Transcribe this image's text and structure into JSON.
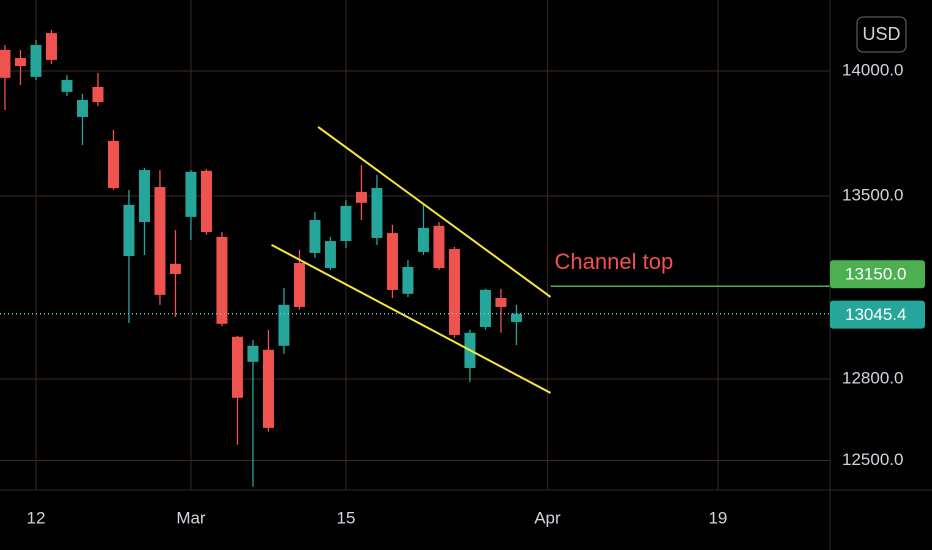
{
  "chart_data": {
    "type": "candlestick",
    "currency": "USD",
    "log_scale": true,
    "grid": true,
    "up_color": "#26a69a",
    "down_color": "#ef5350",
    "grid_color": "#3b2a1c",
    "open": [
      14086,
      14053,
      13976,
      14155,
      13915,
      13814,
      13935,
      13718,
      13266,
      13398,
      13535,
      13236,
      13418,
      13599,
      13340,
      12958,
      12864,
      12909,
      12924,
      13239,
      13278,
      13220,
      13324,
      13516,
      13336,
      13355,
      13121,
      13282,
      13383,
      13293,
      12841,
      12995,
      13105,
      13014
    ],
    "high": [
      14106,
      14086,
      14127,
      14168,
      13983,
      13907,
      13992,
      13762,
      13524,
      13610,
      13602,
      13367,
      13602,
      13606,
      13359,
      12961,
      12946,
      12984,
      13143,
      13290,
      13437,
      13340,
      13484,
      13622,
      13583,
      13387,
      13251,
      13465,
      13398,
      13301,
      12984,
      13140,
      13140,
      13079
    ],
    "low": [
      13842,
      13943,
      13963,
      14028,
      13898,
      13702,
      13858,
      13524,
      13010,
      13270,
      13079,
      13033,
      13328,
      13348,
      12999,
      12557,
      12405,
      12605,
      12894,
      13060,
      13259,
      13212,
      13297,
      13406,
      13309,
      13105,
      13109,
      13270,
      13212,
      12954,
      12789,
      12984,
      12973,
      12927
    ],
    "close": [
      13972,
      14020,
      14106,
      14045,
      13963,
      13882,
      13874,
      13531,
      13465,
      13602,
      13117,
      13197,
      13595,
      13359,
      13007,
      12730,
      12924,
      12619,
      13079,
      13071,
      13406,
      13324,
      13461,
      13473,
      13531,
      13136,
      13224,
      13375,
      13220,
      12965,
      12973,
      13136,
      13071,
      13045.4
    ],
    "xlim": [
      -0.32,
      53.23
    ],
    "xticks": [
      {
        "value": 2,
        "label": "12"
      },
      {
        "value": 12,
        "label": "Mar"
      },
      {
        "value": 22,
        "label": "15"
      },
      {
        "value": 35,
        "label": "Apr"
      },
      {
        "value": 46,
        "label": "19"
      }
    ],
    "ylim": [
      12393,
      14292
    ],
    "yticks": [
      {
        "value": 12500,
        "label": "12500.0"
      },
      {
        "value": 12800,
        "label": "12800.0"
      },
      {
        "value": 13500,
        "label": "13500.0"
      },
      {
        "value": 14000,
        "label": "14000.0"
      }
    ],
    "trendlines": [
      {
        "color": "#f5e642",
        "x": [
          20.2,
          35.2
        ],
        "y": [
          13774,
          13109
        ]
      },
      {
        "color": "#f5e642",
        "x": [
          17.2,
          35.2
        ],
        "y": [
          13309,
          12748
        ]
      }
    ],
    "price_line": {
      "value": 13150,
      "label": "13150.0",
      "color": "#4caf50",
      "x_start": 35.2,
      "annotation": "Channel top",
      "annotation_color": "#f0524f"
    },
    "last_price": {
      "value": 13045.4,
      "label": "13045.4",
      "color": "#26a69a",
      "line_color": "#5fd3cf"
    }
  }
}
